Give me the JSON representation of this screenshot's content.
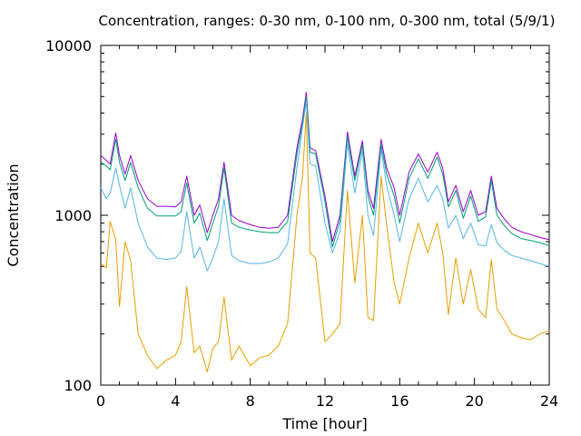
{
  "chart_data": {
    "type": "line",
    "title": "Concentration, ranges: 0-30 nm, 0-100 nm, 0-300 nm, total (5/9/1)",
    "xlabel": "Time [hour]",
    "ylabel": "Concentration",
    "xlim": [
      0,
      24
    ],
    "ylim": [
      100,
      10000
    ],
    "yscale": "log",
    "grid": false,
    "legend": "none",
    "x_ticks": [
      "0",
      "4",
      "8",
      "12",
      "16",
      "20",
      "24"
    ],
    "y_ticks": [
      "100",
      "1000",
      "10000"
    ],
    "x": [
      0,
      0.3,
      0.5,
      0.8,
      1.0,
      1.3,
      1.6,
      2.0,
      2.5,
      3.0,
      3.5,
      4.0,
      4.3,
      4.6,
      5.0,
      5.3,
      5.7,
      6.0,
      6.3,
      6.6,
      7.0,
      7.4,
      8.0,
      8.5,
      9.0,
      9.5,
      10.0,
      10.5,
      10.8,
      11.0,
      11.2,
      11.5,
      12.0,
      12.4,
      12.8,
      13.2,
      13.6,
      14.0,
      14.3,
      14.6,
      15.0,
      15.3,
      15.7,
      16.0,
      16.5,
      17.0,
      17.5,
      18.0,
      18.3,
      18.6,
      19.0,
      19.4,
      19.8,
      20.2,
      20.6,
      20.9,
      21.2,
      21.6,
      22.0,
      22.5,
      23.0,
      23.5,
      24.0
    ],
    "series": [
      {
        "color": "#9400d3",
        "values": [
          2250,
          2100,
          2000,
          3050,
          2250,
          1750,
          2250,
          1600,
          1250,
          1130,
          1130,
          1120,
          1200,
          1700,
          1000,
          1150,
          790,
          1000,
          1250,
          2050,
          1000,
          930,
          880,
          850,
          840,
          850,
          1000,
          2500,
          3700,
          5300,
          2500,
          2400,
          1300,
          700,
          1000,
          3100,
          1700,
          2750,
          1400,
          1100,
          2800,
          1900,
          1450,
          1000,
          1800,
          2300,
          1800,
          2350,
          1900,
          1200,
          1500,
          1050,
          1400,
          1000,
          1050,
          1700,
          1100,
          950,
          850,
          800,
          770,
          740,
          720
        ]
      },
      {
        "color": "#009e73",
        "values": [
          2050,
          1950,
          1850,
          2800,
          2050,
          1600,
          2050,
          1450,
          1100,
          990,
          990,
          990,
          1050,
          1550,
          900,
          1030,
          710,
          900,
          1130,
          1900,
          900,
          850,
          820,
          800,
          790,
          790,
          920,
          2300,
          3500,
          5000,
          2350,
          2300,
          1200,
          650,
          930,
          2900,
          1600,
          2600,
          1300,
          1000,
          2600,
          1750,
          1300,
          900,
          1650,
          2150,
          1650,
          2200,
          1750,
          1120,
          1400,
          960,
          1300,
          920,
          980,
          1600,
          1000,
          870,
          780,
          730,
          710,
          690,
          660
        ]
      },
      {
        "color": "#56b4e9",
        "values": [
          1450,
          1250,
          1350,
          1900,
          1500,
          1100,
          1450,
          900,
          650,
          560,
          550,
          560,
          610,
          1050,
          560,
          650,
          470,
          560,
          700,
          1250,
          580,
          540,
          520,
          520,
          530,
          560,
          680,
          1900,
          3300,
          4700,
          2000,
          1950,
          900,
          600,
          800,
          2650,
          1350,
          2400,
          1000,
          760,
          2450,
          1500,
          1000,
          700,
          1250,
          1650,
          1200,
          1500,
          1250,
          840,
          1000,
          730,
          900,
          670,
          660,
          880,
          690,
          620,
          580,
          560,
          540,
          520,
          500
        ]
      },
      {
        "color": "#e69f00",
        "values": [
          520,
          490,
          920,
          720,
          290,
          700,
          540,
          200,
          150,
          125,
          140,
          150,
          180,
          380,
          155,
          170,
          120,
          165,
          180,
          330,
          140,
          170,
          130,
          145,
          150,
          170,
          230,
          1000,
          1700,
          4000,
          600,
          560,
          180,
          200,
          230,
          1400,
          400,
          1000,
          250,
          240,
          1700,
          880,
          400,
          300,
          560,
          900,
          600,
          900,
          600,
          260,
          560,
          300,
          480,
          280,
          250,
          550,
          280,
          240,
          200,
          190,
          185,
          200,
          210
        ]
      }
    ]
  }
}
